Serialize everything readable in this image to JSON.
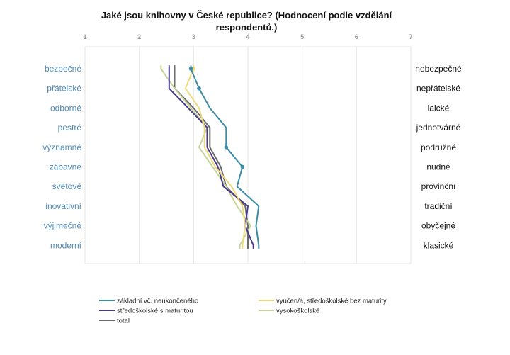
{
  "chart_data": {
    "type": "line",
    "title_line1": "Jaké jsou knihovny v České republice? (Hodnocení podle vzdělání",
    "title_line2": "respondentů.)",
    "xlim": [
      1,
      7
    ],
    "x_ticks": [
      "1",
      "2",
      "3",
      "4",
      "5",
      "6",
      "7"
    ],
    "grid": true,
    "legend_position": "bottom",
    "left_labels": [
      "bezpečné",
      "přátelské",
      "odborné",
      "pestré",
      "významné",
      "zábavné",
      "světové",
      "inovativní",
      "výjimečné",
      "moderní"
    ],
    "right_labels": [
      "nebezpečné",
      "nepřátelské",
      "laické",
      "jednotvárné",
      "podružné",
      "nudné",
      "provinční",
      "tradiční",
      "obyčejné",
      "klasické"
    ],
    "colors": {
      "left_label": "#4f8bb8",
      "grid": "#e6e6e6"
    },
    "series": [
      {
        "name": "základní vč. neukončeného",
        "color": "#3d8ba5",
        "marker_points": [
          0,
          1,
          4,
          5
        ],
        "values": [
          2.95,
          3.1,
          3.3,
          3.6,
          3.6,
          3.9,
          3.8,
          4.2,
          4.15,
          4.2
        ]
      },
      {
        "name": "vyučen/a, středoškolské bez maturity",
        "color": "#eed97a",
        "marker_points": [
          0
        ],
        "values": [
          3.0,
          2.85,
          3.1,
          3.2,
          3.2,
          3.4,
          3.7,
          3.9,
          3.95,
          3.9
        ]
      },
      {
        "name": "středoškolské s maturitou",
        "color": "#4a3a8c",
        "marker_points": [],
        "values": [
          2.55,
          2.55,
          2.9,
          3.25,
          3.25,
          3.45,
          3.55,
          4.0,
          3.95,
          4.1
        ]
      },
      {
        "name": "vysokoškolské",
        "color": "#c5d49a",
        "marker_points": [],
        "values": [
          2.4,
          2.65,
          2.95,
          3.25,
          3.1,
          3.35,
          3.6,
          3.8,
          4.05,
          3.85
        ]
      },
      {
        "name": "total",
        "color": "#6b6b6b",
        "marker_points": [],
        "values": [
          2.65,
          2.65,
          3.0,
          3.3,
          3.3,
          3.5,
          3.6,
          3.95,
          4.0,
          4.0
        ]
      }
    ]
  }
}
